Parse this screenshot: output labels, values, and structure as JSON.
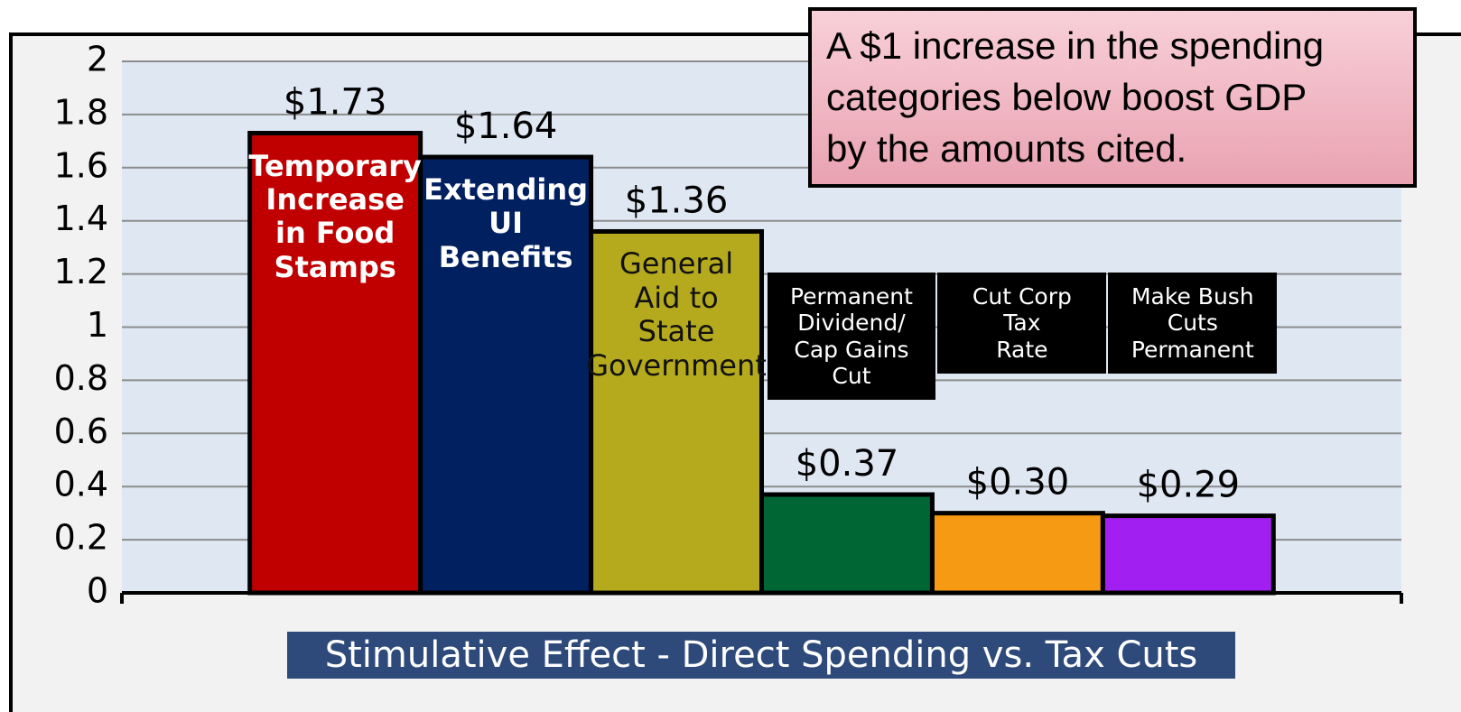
{
  "chart_data": {
    "type": "bar",
    "title": "Stimulative Effect - Direct Spending vs. Tax Cuts",
    "annotation": "A $1 increase in the spending\ncategories below boost GDP\nby the amounts cited.",
    "categories": [
      "Temporary\nIncrease\nin Food\nStamps",
      "Extending\nUI\nBenefits",
      "General\nAid to\nState\nGovernment",
      "Permanent\nDividend/\nCap Gains\nCut",
      "Cut Corp\nTax\nRate",
      "Make Bush\nCuts\nPermanent"
    ],
    "values": [
      1.73,
      1.64,
      1.36,
      0.37,
      0.3,
      0.29
    ],
    "value_labels": [
      "$1.73",
      "$1.64",
      "$1.36",
      "$0.37",
      "$0.30",
      "$0.29"
    ],
    "colors": [
      "#c00000",
      "#002060",
      "#b5aa1e",
      "#006633",
      "#f79a13",
      "#a11ff0"
    ],
    "ylim": [
      0,
      2
    ],
    "yticks": [
      0,
      0.2,
      0.4,
      0.6,
      0.8,
      1,
      1.2,
      1.4,
      1.6,
      1.8,
      2
    ],
    "grid": true
  }
}
